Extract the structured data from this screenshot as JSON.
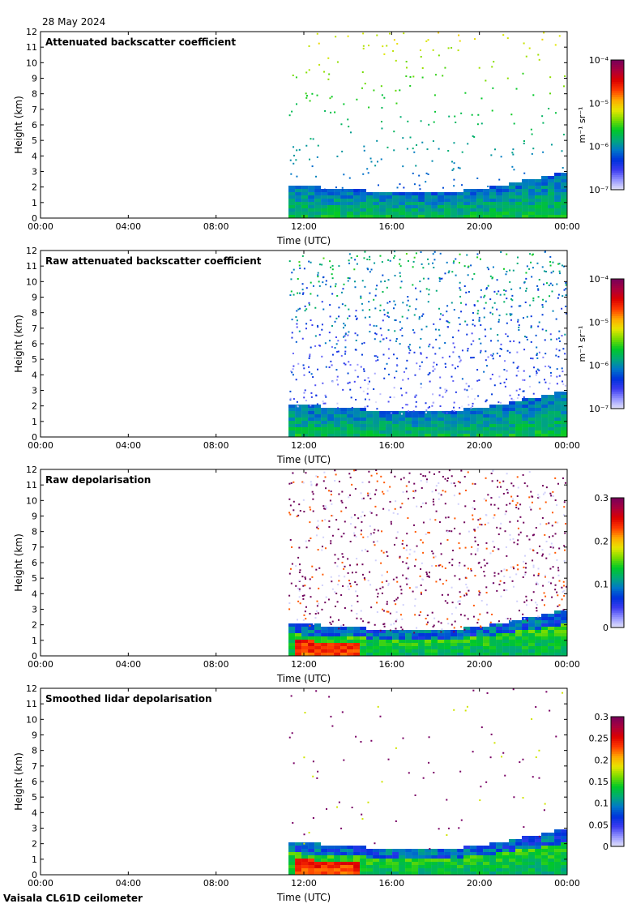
{
  "header": {
    "date": "28 May 2024"
  },
  "footer": {
    "instrument": "Vaisala CL61D ceilometer"
  },
  "chart_data": [
    {
      "type": "heatmap",
      "title": "Attenuated backscatter coefficient",
      "xlabel": "Time (UTC)",
      "ylabel": "Height (km)",
      "x_tick_labels": [
        "00:00",
        "04:00",
        "08:00",
        "12:00",
        "16:00",
        "20:00",
        "00:00"
      ],
      "xlim_hours": [
        0,
        24
      ],
      "ylim": [
        0,
        12
      ],
      "y_ticks": [
        0,
        1,
        2,
        3,
        4,
        5,
        6,
        7,
        8,
        9,
        10,
        11,
        12
      ],
      "data_start_hour": 11.3,
      "scale": "log",
      "colorbar": {
        "unit_label": "m⁻¹ sr⁻¹",
        "ticks": [
          "10⁻⁴",
          "10⁻⁵",
          "10⁻⁶",
          "10⁻⁷"
        ],
        "range": [
          1e-07,
          0.0001
        ]
      },
      "layer_top_km": [
        2.0,
        1.9,
        1.8,
        1.7,
        1.6,
        1.5,
        1.5,
        1.6,
        1.8,
        2.0,
        2.3,
        2.6,
        2.9
      ]
    },
    {
      "type": "heatmap",
      "title": "Raw attenuated backscatter coefficient",
      "xlabel": "Time (UTC)",
      "ylabel": "Height (km)",
      "x_tick_labels": [
        "00:00",
        "04:00",
        "08:00",
        "12:00",
        "16:00",
        "20:00",
        "00:00"
      ],
      "xlim_hours": [
        0,
        24
      ],
      "ylim": [
        0,
        12
      ],
      "y_ticks": [
        0,
        1,
        2,
        3,
        4,
        5,
        6,
        7,
        8,
        9,
        10,
        11,
        12
      ],
      "data_start_hour": 11.3,
      "scale": "log",
      "colorbar": {
        "unit_label": "m⁻¹ sr⁻¹",
        "ticks": [
          "10⁻⁴",
          "10⁻⁵",
          "10⁻⁶",
          "10⁻⁷"
        ],
        "range": [
          1e-07,
          0.0001
        ]
      },
      "layer_top_km": [
        2.0,
        1.9,
        1.8,
        1.7,
        1.6,
        1.5,
        1.5,
        1.6,
        1.8,
        2.0,
        2.3,
        2.6,
        2.9
      ]
    },
    {
      "type": "heatmap",
      "title": "Raw depolarisation",
      "xlabel": "Time (UTC)",
      "ylabel": "Height (km)",
      "x_tick_labels": [
        "00:00",
        "04:00",
        "08:00",
        "12:00",
        "16:00",
        "20:00",
        "00:00"
      ],
      "xlim_hours": [
        0,
        24
      ],
      "ylim": [
        0,
        12
      ],
      "y_ticks": [
        0,
        1,
        2,
        3,
        4,
        5,
        6,
        7,
        8,
        9,
        10,
        11,
        12
      ],
      "data_start_hour": 11.3,
      "scale": "linear",
      "colorbar": {
        "unit_label": "",
        "ticks": [
          "0.3",
          "0.2",
          "0.1",
          "0"
        ],
        "range": [
          0,
          0.3
        ]
      },
      "layer_top_km": [
        2.0,
        1.9,
        1.8,
        1.7,
        1.6,
        1.5,
        1.5,
        1.6,
        1.8,
        2.0,
        2.3,
        2.6,
        2.9
      ]
    },
    {
      "type": "heatmap",
      "title": "Smoothed lidar depolarisation",
      "xlabel": "Time (UTC)",
      "ylabel": "Height (km)",
      "x_tick_labels": [
        "00:00",
        "04:00",
        "08:00",
        "12:00",
        "16:00",
        "20:00",
        "00:00"
      ],
      "xlim_hours": [
        0,
        24
      ],
      "ylim": [
        0,
        12
      ],
      "y_ticks": [
        0,
        1,
        2,
        3,
        4,
        5,
        6,
        7,
        8,
        9,
        10,
        11,
        12
      ],
      "data_start_hour": 11.3,
      "scale": "linear",
      "colorbar": {
        "unit_label": "",
        "ticks": [
          "0.3",
          "0.25",
          "0.2",
          "0.15",
          "0.1",
          "0.05",
          "0"
        ],
        "range": [
          0,
          0.3
        ]
      },
      "layer_top_km": [
        2.0,
        1.9,
        1.8,
        1.7,
        1.6,
        1.5,
        1.5,
        1.6,
        1.8,
        2.0,
        2.3,
        2.6,
        2.9
      ]
    }
  ]
}
